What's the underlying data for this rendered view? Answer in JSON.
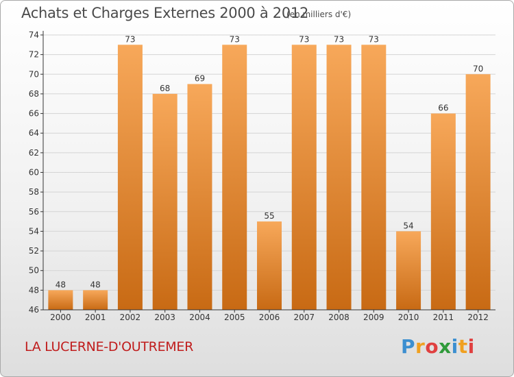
{
  "header": {
    "title": "Achats et Charges Externes 2000 à 2012",
    "subtitle": "(en milliers d'€)"
  },
  "footer": {
    "commune": "LA LUCERNE-D'OUTREMER",
    "brand_letters": [
      "P",
      "r",
      "o",
      "x",
      "i",
      "t",
      "i"
    ],
    "brand_colors": [
      "#3c8fd0",
      "#f0a020",
      "#e04040",
      "#2f9a3a",
      "#3c8fd0",
      "#f0a020",
      "#e04040"
    ]
  },
  "chart_data": {
    "type": "bar",
    "title": "Achats et Charges Externes 2000 à 2012",
    "subtitle": "(en milliers d'€)",
    "xlabel": "",
    "ylabel": "",
    "categories": [
      "2000",
      "2001",
      "2002",
      "2003",
      "2004",
      "2005",
      "2006",
      "2007",
      "2008",
      "2009",
      "2010",
      "2011",
      "2012"
    ],
    "values": [
      48,
      48,
      73,
      68,
      69,
      73,
      55,
      73,
      73,
      73,
      54,
      66,
      70
    ],
    "ylim": [
      46,
      74
    ],
    "yticks": [
      46,
      48,
      50,
      52,
      54,
      56,
      58,
      60,
      62,
      64,
      66,
      68,
      70,
      72,
      74
    ],
    "grid": true,
    "legend": "none",
    "colors": {
      "bar_light": "#f7a85a",
      "bar_dark": "#c86a14",
      "grid": "#d4d4d4",
      "axis": "#333333"
    }
  }
}
